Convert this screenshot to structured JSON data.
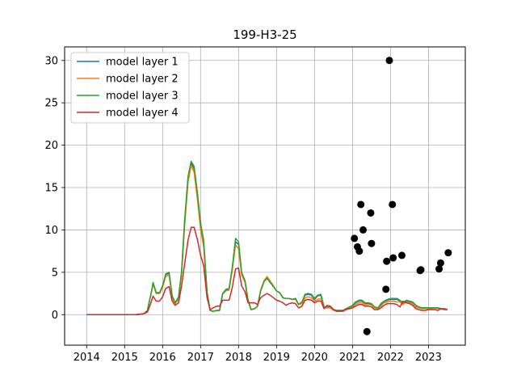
{
  "chart_data": {
    "type": "line",
    "title": "199-H3-25",
    "xlabel": "",
    "ylabel": "",
    "xlim": [
      2013.42,
      2023.97
    ],
    "ylim": [
      -3.6,
      31.6
    ],
    "xticks": [
      2014,
      2015,
      2016,
      2017,
      2018,
      2019,
      2020,
      2021,
      2022,
      2023
    ],
    "yticks": [
      0,
      5,
      10,
      15,
      20,
      25,
      30
    ],
    "grid": true,
    "legend_position": "top-left",
    "series": [
      {
        "name": "model layer 1",
        "color": "#1f77b4",
        "x": [
          2014.0,
          2014.5,
          2015.0,
          2015.3,
          2015.5,
          2015.6,
          2015.7,
          2015.75,
          2015.83,
          2015.92,
          2016.0,
          2016.08,
          2016.17,
          2016.25,
          2016.33,
          2016.42,
          2016.5,
          2016.58,
          2016.67,
          2016.75,
          2016.83,
          2016.92,
          2017.0,
          2017.08,
          2017.17,
          2017.25,
          2017.33,
          2017.42,
          2017.5,
          2017.58,
          2017.67,
          2017.75,
          2017.83,
          2017.92,
          2018.0,
          2018.08,
          2018.17,
          2018.25,
          2018.33,
          2018.42,
          2018.5,
          2018.58,
          2018.67,
          2018.75,
          2018.83,
          2018.92,
          2019.0,
          2019.08,
          2019.17,
          2019.25,
          2019.33,
          2019.42,
          2019.5,
          2019.58,
          2019.67,
          2019.75,
          2019.83,
          2019.92,
          2020.0,
          2020.08,
          2020.17,
          2020.25,
          2020.33,
          2020.42,
          2020.5,
          2020.58,
          2020.67,
          2020.75,
          2020.83,
          2020.92,
          2021.0,
          2021.08,
          2021.17,
          2021.25,
          2021.33,
          2021.42,
          2021.5,
          2021.58,
          2021.67,
          2021.75,
          2021.83,
          2021.92,
          2022.0,
          2022.08,
          2022.17,
          2022.25,
          2022.33,
          2022.42,
          2022.5,
          2022.58,
          2022.67,
          2022.75,
          2022.83,
          2022.92,
          2023.0,
          2023.08,
          2023.17,
          2023.25,
          2023.33,
          2023.42,
          2023.5
        ],
        "y": [
          0,
          0,
          0,
          0,
          0.1,
          0.5,
          2.6,
          3.7,
          2.6,
          2.6,
          3.3,
          4.7,
          4.9,
          2.2,
          1.4,
          2.0,
          5.0,
          11.0,
          16.0,
          17.9,
          17.2,
          14.0,
          10.5,
          8.5,
          2.6,
          0.5,
          0.4,
          0.5,
          0.5,
          2.5,
          2.9,
          3.0,
          5.3,
          8.6,
          8.3,
          4.9,
          3.9,
          1.7,
          0.6,
          0.7,
          1.0,
          2.8,
          3.9,
          4.3,
          3.8,
          3.3,
          2.8,
          2.6,
          2.0,
          1.9,
          1.9,
          1.8,
          1.9,
          1.2,
          1.4,
          2.3,
          2.4,
          2.3,
          1.8,
          2.2,
          2.3,
          0.9,
          0.9,
          0.9,
          0.6,
          0.5,
          0.5,
          0.5,
          0.7,
          0.9,
          1.0,
          1.4,
          1.6,
          1.6,
          1.3,
          1.3,
          1.2,
          0.9,
          0.8,
          1.2,
          1.5,
          1.7,
          1.8,
          1.8,
          1.8,
          1.6,
          1.3,
          1.6,
          1.5,
          1.4,
          1.0,
          0.9,
          0.8,
          0.8,
          0.8,
          0.8,
          0.8,
          0.8,
          0.7,
          0.7,
          0.6
        ]
      },
      {
        "name": "model layer 2",
        "color": "#ff7f0e",
        "x": [
          2014.0,
          2014.5,
          2015.0,
          2015.3,
          2015.5,
          2015.6,
          2015.7,
          2015.75,
          2015.83,
          2015.92,
          2016.0,
          2016.08,
          2016.17,
          2016.25,
          2016.33,
          2016.42,
          2016.5,
          2016.58,
          2016.67,
          2016.75,
          2016.83,
          2016.92,
          2017.0,
          2017.08,
          2017.17,
          2017.25,
          2017.33,
          2017.42,
          2017.5,
          2017.58,
          2017.67,
          2017.75,
          2017.83,
          2017.92,
          2018.0,
          2018.08,
          2018.17,
          2018.25,
          2018.33,
          2018.42,
          2018.5,
          2018.58,
          2018.67,
          2018.75,
          2018.83,
          2018.92,
          2019.0,
          2019.08,
          2019.17,
          2019.25,
          2019.33,
          2019.42,
          2019.5,
          2019.58,
          2019.67,
          2019.75,
          2019.83,
          2019.92,
          2020.0,
          2020.08,
          2020.17,
          2020.25,
          2020.33,
          2020.42,
          2020.5,
          2020.58,
          2020.67,
          2020.75,
          2020.83,
          2020.92,
          2021.0,
          2021.08,
          2021.17,
          2021.25,
          2021.33,
          2021.42,
          2021.5,
          2021.58,
          2021.67,
          2021.75,
          2021.83,
          2021.92,
          2022.0,
          2022.08,
          2022.17,
          2022.25,
          2022.33,
          2022.42,
          2022.5,
          2022.58,
          2022.67,
          2022.75,
          2022.83,
          2022.92,
          2023.0,
          2023.08,
          2023.17,
          2023.25,
          2023.33,
          2023.42,
          2023.5
        ],
        "y": [
          0,
          0,
          0,
          0,
          0.1,
          0.5,
          2.5,
          3.6,
          2.5,
          2.5,
          3.2,
          4.5,
          4.7,
          2.0,
          1.3,
          1.8,
          4.8,
          10.5,
          15.6,
          17.6,
          16.8,
          13.5,
          10.0,
          8.0,
          2.5,
          0.5,
          0.4,
          0.5,
          0.5,
          2.4,
          2.8,
          2.9,
          5.1,
          8.2,
          7.8,
          4.7,
          3.8,
          1.6,
          0.6,
          0.7,
          1.0,
          2.9,
          4.0,
          4.5,
          4.0,
          3.4,
          2.8,
          2.6,
          2.0,
          1.9,
          1.9,
          1.8,
          1.8,
          1.2,
          1.3,
          2.0,
          2.1,
          2.0,
          1.6,
          1.8,
          1.9,
          0.8,
          0.8,
          0.8,
          0.5,
          0.5,
          0.5,
          0.5,
          0.6,
          0.8,
          0.9,
          1.2,
          1.4,
          1.4,
          1.2,
          1.2,
          1.1,
          0.8,
          0.7,
          1.0,
          1.4,
          1.5,
          1.6,
          1.6,
          1.5,
          1.5,
          1.2,
          1.5,
          1.4,
          1.3,
          0.9,
          0.8,
          0.7,
          0.7,
          0.7,
          0.7,
          0.8,
          0.7,
          0.7,
          0.7,
          0.6
        ]
      },
      {
        "name": "model layer 3",
        "color": "#2ca02c",
        "x": [
          2014.0,
          2014.5,
          2015.0,
          2015.3,
          2015.5,
          2015.6,
          2015.7,
          2015.75,
          2015.83,
          2015.92,
          2016.0,
          2016.08,
          2016.17,
          2016.25,
          2016.33,
          2016.42,
          2016.5,
          2016.58,
          2016.67,
          2016.75,
          2016.83,
          2016.92,
          2017.0,
          2017.08,
          2017.17,
          2017.25,
          2017.33,
          2017.42,
          2017.5,
          2017.58,
          2017.67,
          2017.75,
          2017.83,
          2017.92,
          2018.0,
          2018.08,
          2018.17,
          2018.25,
          2018.33,
          2018.42,
          2018.5,
          2018.58,
          2018.67,
          2018.75,
          2018.83,
          2018.92,
          2019.0,
          2019.08,
          2019.17,
          2019.25,
          2019.33,
          2019.42,
          2019.5,
          2019.58,
          2019.67,
          2019.75,
          2019.83,
          2019.92,
          2020.0,
          2020.08,
          2020.17,
          2020.25,
          2020.33,
          2020.42,
          2020.5,
          2020.58,
          2020.67,
          2020.75,
          2020.83,
          2020.92,
          2021.0,
          2021.08,
          2021.17,
          2021.25,
          2021.33,
          2021.42,
          2021.5,
          2021.58,
          2021.67,
          2021.75,
          2021.83,
          2021.92,
          2022.0,
          2022.08,
          2022.17,
          2022.25,
          2022.33,
          2022.42,
          2022.5,
          2022.58,
          2022.67,
          2022.75,
          2022.83,
          2022.92,
          2023.0,
          2023.08,
          2023.17,
          2023.25,
          2023.33,
          2023.42,
          2023.5
        ],
        "y": [
          0,
          0,
          0,
          0,
          0.1,
          0.5,
          2.6,
          3.8,
          2.6,
          2.6,
          3.4,
          4.8,
          5.0,
          2.2,
          1.4,
          2.1,
          5.1,
          11.2,
          16.3,
          18.1,
          17.5,
          14.3,
          10.8,
          8.8,
          2.7,
          0.5,
          0.4,
          0.5,
          0.5,
          2.5,
          3.0,
          3.1,
          5.4,
          9.0,
          8.6,
          5.0,
          4.0,
          1.7,
          0.6,
          0.7,
          1.0,
          2.8,
          3.9,
          4.3,
          3.8,
          3.3,
          2.8,
          2.6,
          2.0,
          1.9,
          1.9,
          1.8,
          1.9,
          1.2,
          1.5,
          2.4,
          2.5,
          2.4,
          1.9,
          2.3,
          2.4,
          0.9,
          0.9,
          0.9,
          0.6,
          0.5,
          0.5,
          0.5,
          0.7,
          0.9,
          1.1,
          1.5,
          1.7,
          1.7,
          1.4,
          1.4,
          1.3,
          0.9,
          0.8,
          1.3,
          1.6,
          1.8,
          1.9,
          1.9,
          1.9,
          1.7,
          1.4,
          1.7,
          1.6,
          1.5,
          1.1,
          0.9,
          0.8,
          0.8,
          0.8,
          0.8,
          0.8,
          0.8,
          0.7,
          0.7,
          0.6
        ]
      },
      {
        "name": "model layer 4",
        "color": "#d62728",
        "x": [
          2014.0,
          2014.5,
          2015.0,
          2015.3,
          2015.5,
          2015.6,
          2015.7,
          2015.75,
          2015.83,
          2015.92,
          2016.0,
          2016.08,
          2016.17,
          2016.25,
          2016.33,
          2016.42,
          2016.5,
          2016.58,
          2016.67,
          2016.75,
          2016.83,
          2016.92,
          2017.0,
          2017.08,
          2017.17,
          2017.25,
          2017.33,
          2017.42,
          2017.5,
          2017.58,
          2017.67,
          2017.75,
          2017.83,
          2017.92,
          2018.0,
          2018.08,
          2018.17,
          2018.25,
          2018.33,
          2018.42,
          2018.5,
          2018.58,
          2018.67,
          2018.75,
          2018.83,
          2018.92,
          2019.0,
          2019.08,
          2019.17,
          2019.25,
          2019.33,
          2019.42,
          2019.5,
          2019.58,
          2019.67,
          2019.75,
          2019.83,
          2019.92,
          2020.0,
          2020.08,
          2020.17,
          2020.25,
          2020.33,
          2020.42,
          2020.5,
          2020.58,
          2020.67,
          2020.75,
          2020.83,
          2020.92,
          2021.0,
          2021.08,
          2021.17,
          2021.25,
          2021.33,
          2021.42,
          2021.5,
          2021.58,
          2021.67,
          2021.75,
          2021.83,
          2021.92,
          2022.0,
          2022.08,
          2022.17,
          2022.25,
          2022.33,
          2022.42,
          2022.5,
          2022.58,
          2022.67,
          2022.75,
          2022.83,
          2022.92,
          2023.0,
          2023.08,
          2023.17,
          2023.25,
          2023.33,
          2023.42,
          2023.5
        ],
        "y": [
          0,
          0,
          0,
          0,
          0.1,
          0.3,
          1.5,
          2.2,
          1.6,
          1.6,
          2.1,
          3.1,
          3.3,
          1.6,
          1.1,
          1.4,
          3.4,
          6.0,
          8.8,
          10.3,
          10.3,
          8.8,
          7.0,
          5.8,
          2.0,
          0.6,
          0.8,
          1.0,
          1.0,
          1.7,
          1.7,
          1.7,
          3.1,
          5.4,
          5.5,
          3.4,
          2.7,
          1.4,
          1.4,
          1.4,
          1.2,
          2.0,
          2.3,
          2.5,
          2.3,
          2.0,
          1.7,
          1.6,
          1.4,
          1.1,
          1.3,
          1.4,
          1.3,
          0.8,
          1.0,
          1.7,
          1.8,
          1.7,
          1.4,
          1.6,
          1.6,
          0.7,
          1.1,
          1.0,
          0.6,
          0.4,
          0.4,
          0.4,
          0.6,
          0.7,
          0.8,
          1.0,
          1.2,
          1.2,
          1.0,
          1.0,
          0.9,
          0.6,
          0.6,
          0.8,
          1.1,
          1.3,
          1.3,
          1.3,
          1.2,
          0.9,
          1.6,
          1.4,
          1.3,
          1.1,
          0.7,
          0.6,
          0.5,
          0.5,
          0.6,
          0.6,
          0.6,
          0.5,
          0.7,
          0.6,
          0.6
        ]
      }
    ],
    "observations": {
      "color": "#000000",
      "x": [
        2021.05,
        2021.13,
        2021.18,
        2021.22,
        2021.28,
        2021.38,
        2021.48,
        2021.5,
        2021.88,
        2021.9,
        2021.97,
        2022.05,
        2022.07,
        2022.3,
        2022.78,
        2022.8,
        2023.28,
        2023.32,
        2023.52
      ],
      "y": [
        9.0,
        8.0,
        7.5,
        13.0,
        10.0,
        -2.0,
        12.0,
        8.4,
        3.0,
        6.3,
        30.0,
        13.0,
        6.7,
        7.0,
        5.2,
        5.3,
        5.4,
        6.1,
        7.3
      ]
    }
  }
}
